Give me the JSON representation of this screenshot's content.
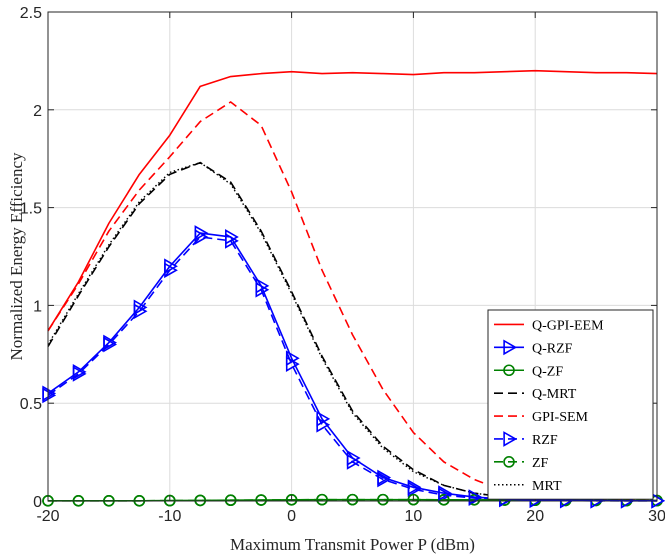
{
  "chart_data": {
    "type": "line",
    "title": "",
    "xlabel": "Maximum Transmit Power P (dBm)",
    "ylabel": "Normalized Energy Efficiency",
    "xlim": [
      -20,
      30
    ],
    "ylim": [
      0,
      2.5
    ],
    "x_ticks": [
      "-20",
      "-10",
      "0",
      "10",
      "20",
      "30"
    ],
    "y_ticks": [
      "0",
      "0.5",
      "1",
      "1.5",
      "2",
      "2.5"
    ],
    "grid": true,
    "legend_position": "bottom-right",
    "x": [
      -20,
      -17.5,
      -15,
      -12.5,
      -10,
      -7.5,
      -5,
      -2.5,
      0,
      2.5,
      5,
      7.5,
      10,
      12.5,
      15,
      17.5,
      20,
      22.5,
      25,
      27.5,
      30
    ],
    "series": [
      {
        "name": "Q-GPI-EEM",
        "color": "#ff0000",
        "dash": "solid",
        "marker": "none",
        "values": [
          0.87,
          1.12,
          1.42,
          1.67,
          1.87,
          2.12,
          2.17,
          2.185,
          2.195,
          2.185,
          2.19,
          2.185,
          2.18,
          2.19,
          2.19,
          2.195,
          2.2,
          2.195,
          2.19,
          2.19,
          2.185
        ]
      },
      {
        "name": "Q-RZF",
        "color": "#0000ff",
        "dash": "solid",
        "marker": "triangle-right",
        "values": [
          0.55,
          0.66,
          0.81,
          0.99,
          1.2,
          1.37,
          1.35,
          1.1,
          0.73,
          0.42,
          0.22,
          0.12,
          0.07,
          0.04,
          0.02,
          0.01,
          0.005,
          0.003,
          0.002,
          0.001,
          0.001
        ]
      },
      {
        "name": "Q-ZF",
        "color": "#008000",
        "dash": "solid",
        "marker": "circle",
        "values": [
          0.001,
          0.001,
          0.001,
          0.001,
          0.002,
          0.003,
          0.004,
          0.005,
          0.006,
          0.007,
          0.007,
          0.007,
          0.007,
          0.006,
          0.006,
          0.005,
          0.004,
          0.003,
          0.003,
          0.002,
          0.002
        ]
      },
      {
        "name": "Q-MRT",
        "color": "#000000",
        "dash": "dash",
        "marker": "none",
        "values": [
          0.79,
          1.05,
          1.3,
          1.52,
          1.67,
          1.73,
          1.63,
          1.38,
          1.07,
          0.74,
          0.46,
          0.28,
          0.16,
          0.08,
          0.04,
          0.02,
          0.01,
          0.005,
          0.003,
          0.002,
          0.001
        ]
      },
      {
        "name": "GPI-SEM",
        "color": "#ff0000",
        "dash": "dash",
        "marker": "none",
        "values": [
          0.87,
          1.11,
          1.38,
          1.59,
          1.76,
          1.94,
          2.04,
          1.92,
          1.58,
          1.18,
          0.85,
          0.57,
          0.35,
          0.2,
          0.11,
          0.05,
          0.02,
          0.01,
          0.005,
          0.003,
          0.002
        ]
      },
      {
        "name": "RZF",
        "color": "#0000ff",
        "dash": "dash",
        "marker": "triangle-right",
        "values": [
          0.54,
          0.65,
          0.8,
          0.97,
          1.18,
          1.35,
          1.33,
          1.08,
          0.7,
          0.39,
          0.2,
          0.11,
          0.06,
          0.03,
          0.015,
          0.008,
          0.004,
          0.002,
          0.001,
          0.001,
          0.001
        ]
      },
      {
        "name": "ZF",
        "color": "#008000",
        "dash": "dash",
        "marker": "circle",
        "values": [
          0.001,
          0.001,
          0.001,
          0.001,
          0.002,
          0.003,
          0.004,
          0.005,
          0.006,
          0.007,
          0.007,
          0.007,
          0.007,
          0.006,
          0.006,
          0.005,
          0.004,
          0.003,
          0.003,
          0.002,
          0.002
        ]
      },
      {
        "name": "MRT",
        "color": "#000000",
        "dash": "dot",
        "marker": "none",
        "values": [
          0.8,
          1.06,
          1.31,
          1.53,
          1.68,
          1.73,
          1.62,
          1.37,
          1.06,
          0.73,
          0.45,
          0.27,
          0.15,
          0.08,
          0.04,
          0.02,
          0.01,
          0.005,
          0.003,
          0.002,
          0.001
        ]
      }
    ]
  }
}
